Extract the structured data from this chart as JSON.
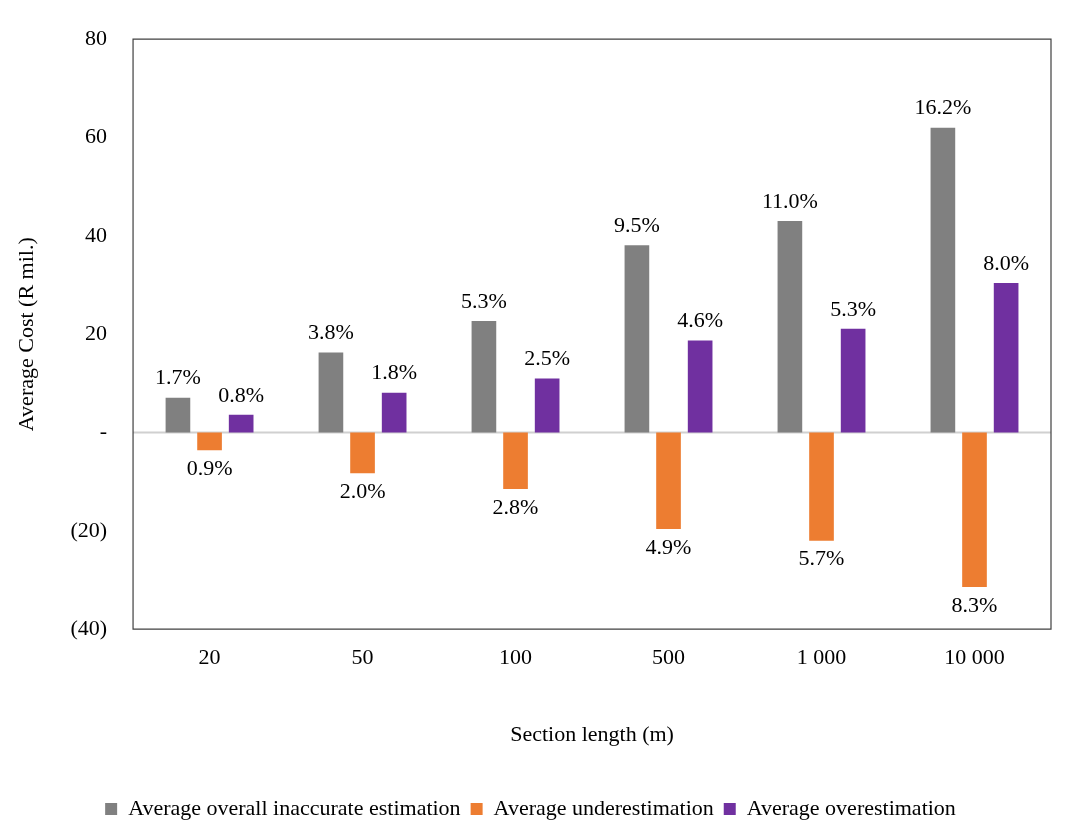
{
  "chart_data": {
    "type": "bar",
    "xlabel": "Section length (m)",
    "ylabel": "Average Cost (R mil.)",
    "categories": [
      "20",
      "50",
      "100",
      "500",
      "1 000",
      "10 000"
    ],
    "series": [
      {
        "name": "Average overall inaccurate estimation",
        "color": "#808080",
        "values": [
          7.1,
          16.3,
          22.7,
          38.1,
          43.0,
          62.0
        ]
      },
      {
        "name": "Average underestimation",
        "color": "#ed7d31",
        "values": [
          -3.6,
          -8.3,
          -11.5,
          -19.6,
          -22.0,
          -31.4
        ]
      },
      {
        "name": "Average overestimation",
        "color": "#7030a0",
        "values": [
          3.6,
          8.1,
          11.0,
          18.7,
          21.1,
          30.4
        ]
      }
    ],
    "annotations": [
      "1.7%",
      "3.8%",
      "5.3%",
      "9.5%",
      "11.0%",
      "16.2%",
      "0.9%",
      "2.0%",
      "2.8%",
      "4.9%",
      "5.7%",
      "8.3%",
      "0.8%",
      "1.8%",
      "2.5%",
      "4.6%",
      "5.3%",
      "8.0%"
    ],
    "ref_lines": [
      {
        "axis": "y",
        "value": 0,
        "color": "#d0d0d0"
      }
    ],
    "ylim": [
      -40,
      80
    ],
    "yticks": [
      {
        "value": -40,
        "label": "(40)"
      },
      {
        "value": -20,
        "label": "(20)"
      },
      {
        "value": 0,
        "label": "-"
      },
      20,
      40,
      60,
      80
    ],
    "grid": false,
    "legend": "bottom"
  }
}
